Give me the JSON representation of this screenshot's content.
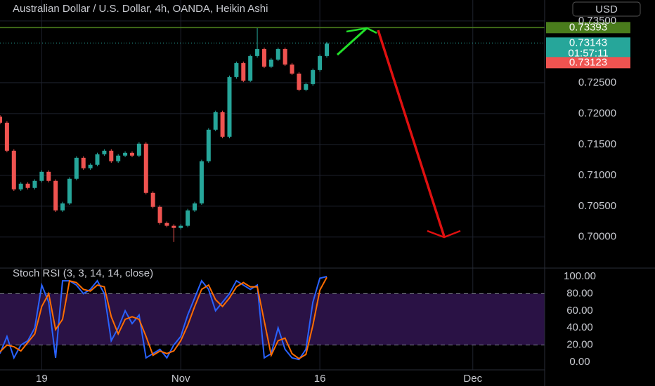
{
  "header": {
    "title": "Australian Dollar / U.S. Dollar, 4h, OANDA, Heikin Ashi",
    "currency": "USD"
  },
  "chart_data": [
    {
      "type": "candlestick",
      "x": [
        0,
        3,
        6,
        9,
        12,
        15,
        18,
        21,
        24,
        27,
        30,
        33,
        36,
        39,
        42,
        45,
        48,
        51,
        54,
        57,
        60,
        63,
        66,
        69,
        72,
        75,
        78,
        81,
        84,
        87,
        90,
        93,
        96,
        99,
        102,
        105,
        108,
        111,
        114,
        117,
        120,
        123,
        126,
        129,
        132,
        135,
        138,
        141
      ],
      "open": [
        0.7195,
        0.71852,
        0.71398,
        0.70773,
        0.70864,
        0.70796,
        0.7091,
        0.71057,
        0.7091,
        0.70432,
        0.70546,
        0.70944,
        0.71284,
        0.71114,
        0.71171,
        0.71341,
        0.71398,
        0.71228,
        0.71319,
        0.71364,
        0.71319,
        0.71512,
        0.70716,
        0.70489,
        0.70228,
        0.70183,
        0.70148,
        0.70183,
        0.70432,
        0.70546,
        0.71228,
        0.71739,
        0.72023,
        0.71625,
        0.72591,
        0.72818,
        0.72534,
        0.72932,
        0.73045,
        0.72761,
        0.72875,
        0.73045,
        0.72795,
        0.72648,
        0.72386,
        0.72477,
        0.72705,
        0.72932
      ],
      "high": [
        0.71975,
        0.71877,
        0.71423,
        0.70889,
        0.70889,
        0.70935,
        0.71082,
        0.71082,
        0.70935,
        0.70571,
        0.70969,
        0.71309,
        0.71309,
        0.71196,
        0.71366,
        0.71423,
        0.71423,
        0.71344,
        0.71389,
        0.71389,
        0.71537,
        0.71537,
        0.70741,
        0.70514,
        0.70253,
        0.70208,
        0.70208,
        0.70457,
        0.70571,
        0.71253,
        0.71764,
        0.72048,
        0.72048,
        0.72616,
        0.72843,
        0.72843,
        0.72957,
        0.73393,
        0.7307,
        0.729,
        0.7307,
        0.7307,
        0.7282,
        0.72673,
        0.72502,
        0.7273,
        0.72957,
        0.73161
      ],
      "low": [
        0.71827,
        0.71373,
        0.70748,
        0.70748,
        0.70771,
        0.70771,
        0.70885,
        0.70885,
        0.70407,
        0.70407,
        0.70521,
        0.70919,
        0.71089,
        0.71089,
        0.71146,
        0.71316,
        0.71203,
        0.71203,
        0.71294,
        0.71294,
        0.71294,
        0.70691,
        0.70464,
        0.70203,
        0.70158,
        0.6992,
        0.70123,
        0.70158,
        0.70407,
        0.70521,
        0.71203,
        0.71714,
        0.716,
        0.716,
        0.72566,
        0.72509,
        0.72509,
        0.72907,
        0.72736,
        0.72736,
        0.7285,
        0.7277,
        0.72623,
        0.72361,
        0.72361,
        0.72452,
        0.7268,
        0.72907
      ],
      "close": [
        0.71852,
        0.71398,
        0.70773,
        0.70864,
        0.70796,
        0.7091,
        0.71057,
        0.7091,
        0.70432,
        0.70546,
        0.70944,
        0.71284,
        0.71114,
        0.71171,
        0.71341,
        0.71398,
        0.71228,
        0.71319,
        0.71364,
        0.71319,
        0.71512,
        0.70716,
        0.70489,
        0.70228,
        0.70183,
        0.70148,
        0.70183,
        0.70432,
        0.70546,
        0.71228,
        0.71739,
        0.72023,
        0.71625,
        0.72591,
        0.72818,
        0.72534,
        0.72932,
        0.73045,
        0.72761,
        0.72875,
        0.73045,
        0.72795,
        0.72648,
        0.72386,
        0.72477,
        0.72705,
        0.72932,
        0.73136
      ],
      "up_color": "#26a69a",
      "down_color": "#ef5350",
      "xlim": [
        0,
        235
      ],
      "xticks": [
        {
          "value": 18,
          "label": "19"
        },
        {
          "value": 78,
          "label": "Nov"
        },
        {
          "value": 138,
          "label": "16"
        },
        {
          "value": 204,
          "label": "Dec"
        }
      ],
      "ylim": [
        0.6952,
        0.7384
      ],
      "yticks": [
        {
          "value": 0.7,
          "label": "0.70000"
        },
        {
          "value": 0.705,
          "label": "0.70500"
        },
        {
          "value": 0.71,
          "label": "0.71000"
        },
        {
          "value": 0.715,
          "label": "0.71500"
        },
        {
          "value": 0.72,
          "label": "0.72000"
        },
        {
          "value": 0.725,
          "label": "0.72500"
        },
        {
          "value": 0.735,
          "label": "0.73500"
        }
      ],
      "level": 0.73393,
      "level_color": "#4a7c1c",
      "last_price": 0.73143,
      "countdown": "01:57:11",
      "last_color": "#26a69a",
      "bid": 0.73123,
      "bid_color": "#ef5350"
    },
    {
      "type": "line",
      "title": "Stoch RSI (3, 3, 14, 14, close)",
      "x": [
        0,
        3,
        6,
        9,
        12,
        15,
        18,
        21,
        24,
        27,
        30,
        33,
        36,
        39,
        42,
        45,
        48,
        51,
        54,
        57,
        60,
        63,
        66,
        69,
        72,
        75,
        78,
        81,
        84,
        87,
        90,
        93,
        96,
        99,
        102,
        105,
        108,
        111,
        114,
        117,
        120,
        123,
        126,
        129,
        132,
        135,
        138,
        141
      ],
      "series": [
        {
          "color": "#2962ff",
          "values": [
            10,
            30,
            5,
            20,
            25,
            40,
            90,
            70,
            5,
            95,
            95,
            90,
            80,
            85,
            95,
            80,
            25,
            40,
            60,
            45,
            55,
            5,
            10,
            15,
            5,
            20,
            30,
            55,
            75,
            95,
            85,
            60,
            70,
            80,
            95,
            90,
            85,
            90,
            5,
            10,
            40,
            15,
            5,
            3,
            15,
            70,
            98,
            100
          ]
        },
        {
          "color": "#ff6d00",
          "values": [
            12,
            20,
            18,
            13,
            23,
            33,
            65,
            80,
            38,
            50,
            95,
            93,
            85,
            83,
            90,
            88,
            53,
            33,
            50,
            53,
            50,
            30,
            8,
            13,
            10,
            13,
            25,
            43,
            65,
            85,
            90,
            73,
            65,
            75,
            88,
            93,
            88,
            88,
            48,
            8,
            25,
            28,
            10,
            4,
            9,
            43,
            84,
            99
          ]
        }
      ],
      "ylim": [
        -7.4,
        107.4
      ],
      "yticks": [
        {
          "value": 0,
          "label": "0.00"
        },
        {
          "value": 20,
          "label": "20.00"
        },
        {
          "value": 40,
          "label": "40.00"
        },
        {
          "value": 60,
          "label": "60.00"
        },
        {
          "value": 80,
          "label": "80.00"
        },
        {
          "value": 100,
          "label": "100.00"
        }
      ],
      "band": [
        20,
        80
      ],
      "band_color": "#2a1245"
    }
  ]
}
